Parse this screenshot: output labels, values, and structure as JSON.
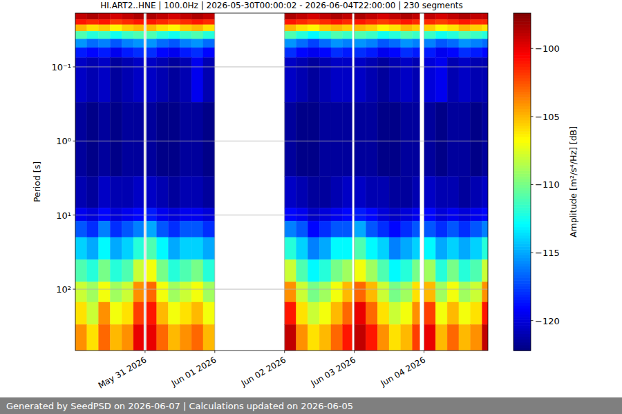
{
  "chart_data": {
    "type": "heatmap",
    "title": "HI.ART2..HNE | 100.0Hz | 2026-05-30T00:00:02 - 2026-06-04T22:00:00 | 230 segments",
    "ylabel": "Period [s]",
    "colorbar_label": "Amplitude [m²/s⁴/Hz] [dB]",
    "log": "y",
    "grid": true,
    "color": "jet",
    "xlim": [
      "2026-05-30T00:00",
      "2026-06-04T22:00"
    ],
    "xticks": [
      {
        "value": "2026-05-31T00:00",
        "label": "May 31 2026"
      },
      {
        "value": "2026-06-01T00:00",
        "label": "Jun 01 2026"
      },
      {
        "value": "2026-06-02T00:00",
        "label": "Jun 02 2026"
      },
      {
        "value": "2026-06-03T00:00",
        "label": "Jun 03 2026"
      },
      {
        "value": "2026-06-04T00:00",
        "label": "Jun 04 2026"
      }
    ],
    "ylim": [
      0.0188,
      673
    ],
    "yticks": [
      {
        "value": 0.1,
        "label": "10⁻¹"
      },
      {
        "value": 1,
        "label": "10⁰"
      },
      {
        "value": 10,
        "label": "10¹"
      },
      {
        "value": 100,
        "label": "10²"
      }
    ],
    "clim": [
      -122.2,
      -97.4
    ],
    "cticks": [
      -100,
      -105,
      -110,
      -115,
      -120
    ],
    "x_edges": [
      "2026-05-30T00:00",
      "2026-05-30T04:00",
      "2026-05-30T08:00",
      "2026-05-30T12:00",
      "2026-05-30T16:00",
      "2026-05-30T20:00",
      "2026-05-30T23:30",
      "2026-05-31T00:30",
      "2026-05-31T04:00",
      "2026-05-31T08:00",
      "2026-05-31T12:00",
      "2026-05-31T16:00",
      "2026-05-31T20:00",
      "2026-06-01T00:00",
      "2026-06-02T00:00",
      "2026-06-02T04:00",
      "2026-06-02T08:00",
      "2026-06-02T12:00",
      "2026-06-02T16:00",
      "2026-06-02T20:00",
      "2026-06-02T23:15",
      "2026-06-03T00:00",
      "2026-06-03T04:00",
      "2026-06-03T08:00",
      "2026-06-03T12:00",
      "2026-06-03T16:00",
      "2026-06-03T20:00",
      "2026-06-03T22:30",
      "2026-06-04T00:00",
      "2026-06-04T04:00",
      "2026-06-04T08:00",
      "2026-06-04T12:00",
      "2026-06-04T16:00",
      "2026-06-04T20:00",
      "2026-06-04T22:00"
    ],
    "y_edges": [
      0.0188,
      0.023,
      0.027,
      0.033,
      0.042,
      0.055,
      0.075,
      0.3,
      3,
      8,
      12,
      20,
      40,
      80,
      150,
      300,
      673
    ],
    "cells": [
      [
        -99,
        -98.5,
        -99,
        -99.5,
        -99,
        -98.5,
        null,
        -98.5,
        -99,
        -99.5,
        -99,
        -98.5,
        -99,
        null,
        -98.5,
        -99,
        -99.5,
        -99,
        -98.5,
        -99,
        null,
        -98.5,
        -99,
        -99.5,
        -99,
        -98.5,
        -99,
        null,
        -99,
        -99.5,
        -99,
        -98.5,
        -99,
        -99
      ],
      [
        -101,
        -101.5,
        -101,
        -102,
        -101.5,
        -101,
        null,
        -101,
        -101.5,
        -102,
        -101.5,
        -101,
        -101.5,
        null,
        -101,
        -101.5,
        -102,
        -101.5,
        -101,
        -101.5,
        null,
        -101,
        -101.5,
        -102,
        -101.5,
        -101,
        -101.5,
        null,
        -101.5,
        -102,
        -101.5,
        -101,
        -101.5,
        -101.5
      ],
      [
        -105,
        -106,
        -105.5,
        -106.5,
        -105.5,
        -105,
        null,
        -105,
        -106,
        -106.5,
        -105.5,
        -105,
        -106,
        null,
        -105,
        -106,
        -106.5,
        -105.5,
        -105,
        -105.5,
        null,
        -105,
        -105.5,
        -106.5,
        -106,
        -105,
        -105.5,
        null,
        -105.5,
        -106.5,
        -106,
        -105,
        -105.5,
        -106
      ],
      [
        -111,
        -112,
        -111.5,
        -112.5,
        -111.5,
        -111,
        null,
        -111,
        -112,
        -112.5,
        -111.5,
        -111,
        -112,
        null,
        -111,
        -112,
        -113,
        -112,
        -111,
        -111.5,
        null,
        -111,
        -111.5,
        -112.5,
        -112,
        -111,
        -111.5,
        null,
        -111.5,
        -112.5,
        -112,
        -111,
        -111.5,
        -112
      ],
      [
        -115.5,
        -116.5,
        -116,
        -117,
        -116,
        -115.5,
        null,
        -115.5,
        -116.5,
        -117,
        -116,
        -115.5,
        -116.5,
        null,
        -115.5,
        -116.5,
        -117.5,
        -116.5,
        -115.5,
        -116,
        null,
        -115.5,
        -116,
        -117,
        -116.5,
        -115.5,
        -116,
        null,
        -116,
        -117,
        -116.5,
        -115.5,
        -116,
        -116.5
      ],
      [
        -118.5,
        -119,
        -118.5,
        -119.5,
        -118.5,
        -118,
        null,
        -118,
        -119,
        -119.5,
        -118.5,
        -118,
        -119,
        null,
        -118,
        -119,
        -119.5,
        -119,
        -118,
        -118.5,
        null,
        -118,
        -118.5,
        -119.5,
        -119,
        -118,
        -118.5,
        null,
        -118.5,
        -119.5,
        -119,
        -118,
        -118.5,
        -119
      ],
      [
        -120.5,
        -121,
        -120.5,
        -121.5,
        -121,
        -120.5,
        null,
        -120.5,
        -121,
        -121.5,
        -121,
        -119.5,
        -121,
        null,
        -120.5,
        -121,
        -121.5,
        -121,
        -120.5,
        -120.5,
        null,
        -120.5,
        -121,
        -121.5,
        -121,
        -120.5,
        -121,
        null,
        -120,
        -119.5,
        -121,
        -120.5,
        -121,
        -121
      ],
      [
        -121.5,
        -122,
        -121.5,
        -122,
        -121.5,
        -121.5,
        null,
        -121.5,
        -122,
        -122,
        -121.5,
        -121.5,
        -122,
        null,
        -121.5,
        -122,
        -122,
        -121.5,
        -121.5,
        -121.5,
        null,
        -121.5,
        -121.5,
        -122,
        -122,
        -121.5,
        -121.5,
        null,
        -121.5,
        -122,
        -121.5,
        -121.5,
        -122,
        -121.5
      ],
      [
        -121,
        -121.5,
        -120.5,
        -121,
        -121,
        -120.5,
        null,
        -120.5,
        -121,
        -121.5,
        -121,
        -121,
        -121.5,
        null,
        -120.5,
        -121,
        -121.5,
        -121.5,
        -121,
        -120.5,
        null,
        -120.5,
        -121,
        -121,
        -121.5,
        -121.5,
        -121,
        null,
        -120.5,
        -121,
        -121,
        -121.5,
        -121,
        -120.5
      ],
      [
        -119.5,
        -120,
        -119,
        -120,
        -119.5,
        -119,
        null,
        -118.5,
        -119.5,
        -120,
        -119.5,
        -119.5,
        -120,
        null,
        -119,
        -119.5,
        -120.5,
        -120,
        -119.5,
        -119,
        null,
        -118.5,
        -119,
        -120,
        -120.5,
        -120,
        -119.5,
        null,
        -119,
        -120,
        -119.5,
        -120,
        -119.5,
        -119
      ],
      [
        -117,
        -118,
        -116,
        -118,
        -117,
        -116,
        null,
        -115,
        -117,
        -118,
        -117,
        -117,
        -118,
        null,
        -116,
        -117,
        -119,
        -118,
        -117,
        -117,
        null,
        -115,
        -117,
        -118,
        -119,
        -118,
        -117,
        null,
        -117,
        -118,
        -117,
        -118,
        -117,
        -116
      ],
      [
        -114,
        -115,
        -113,
        -115,
        -114,
        -112,
        null,
        -111,
        -113,
        -115,
        -114,
        -114,
        -115,
        null,
        -112,
        -114,
        -116,
        -115,
        -113,
        -113,
        null,
        -111,
        -113,
        -114,
        -116,
        -115,
        -114,
        null,
        -113,
        -115,
        -114,
        -115,
        -114,
        -112
      ],
      [
        -111,
        -112,
        -110,
        -112,
        -111,
        -108,
        null,
        -107,
        -110,
        -112,
        -111,
        -110,
        -112,
        null,
        -108,
        -111,
        -113,
        -112,
        -110,
        -109,
        null,
        -107,
        -109,
        -111,
        -113,
        -112,
        -110,
        null,
        -109,
        -112,
        -110,
        -112,
        -111,
        -108
      ],
      [
        -108,
        -109,
        -107,
        -109,
        -108,
        -104,
        null,
        -103,
        -107,
        -109,
        -108,
        -107,
        -109,
        null,
        -104,
        -108,
        -110,
        -109,
        -107,
        -105,
        null,
        -103,
        -105,
        -108,
        -110,
        -109,
        -106,
        null,
        -105,
        -109,
        -107,
        -109,
        -108,
        -104
      ],
      [
        -106,
        -108,
        -104,
        -107,
        -106,
        -102,
        null,
        -101,
        -105,
        -107,
        -106,
        -105,
        -107,
        null,
        -101,
        -106,
        -108,
        -107,
        -105,
        -103,
        null,
        -100,
        -103,
        -106,
        -108,
        -107,
        -104,
        null,
        -102,
        -107,
        -105,
        -107,
        -106,
        -101
      ],
      [
        -104,
        -106,
        -103,
        -105,
        -104,
        -100,
        null,
        -100,
        -103,
        -105,
        -104,
        -103,
        -105,
        null,
        -99,
        -104,
        -106,
        -105,
        -103,
        -101,
        null,
        -99,
        -101,
        -104,
        -106,
        -105,
        -102,
        null,
        -100,
        -105,
        -103,
        -105,
        -104,
        -99
      ]
    ]
  },
  "footer": "Generated by SeedPSD on 2026-06-07 | Calculations updated on 2026-06-05"
}
